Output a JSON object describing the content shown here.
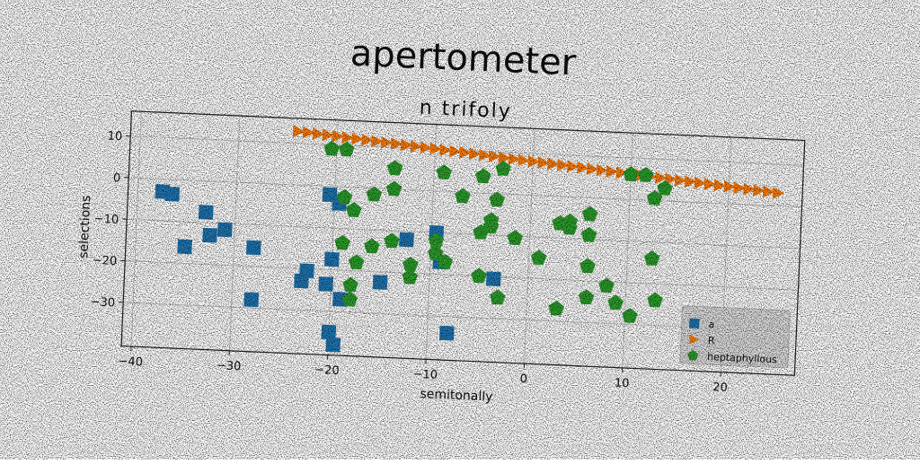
{
  "chart_data": {
    "type": "scatter",
    "title": "apertometer",
    "subtitle": "n trifoly",
    "xlabel": "semitonally",
    "ylabel": "selections",
    "xlim": [
      -41,
      27.5
    ],
    "ylim": [
      -40.5,
      16
    ],
    "xticks": [
      -40,
      -30,
      -20,
      -10,
      0,
      10,
      20
    ],
    "yticks": [
      10,
      0,
      -10,
      -20,
      -30
    ],
    "xtick_labels": [
      "−40",
      "−30",
      "−20",
      "−10",
      "0",
      "10",
      "20"
    ],
    "ytick_labels": [
      "10",
      "0",
      "−10",
      "−20",
      "−30"
    ],
    "grid": true,
    "legend_position": "lower-right",
    "series": [
      {
        "name": "a",
        "marker": "square",
        "color": "#1f77b4",
        "points": [
          [
            -37.5,
            -3
          ],
          [
            -36.5,
            -3.5
          ],
          [
            -35,
            -16
          ],
          [
            -33,
            -7.5
          ],
          [
            -32.5,
            -13
          ],
          [
            -31,
            -11.5
          ],
          [
            -28,
            -15.5
          ],
          [
            -28,
            -28
          ],
          [
            -23,
            -23
          ],
          [
            -22.5,
            -20.5
          ],
          [
            -20.5,
            -2
          ],
          [
            -20.5,
            -23.5
          ],
          [
            -20,
            -17.5
          ],
          [
            -20,
            -35
          ],
          [
            -19.5,
            -38
          ],
          [
            -19.5,
            -4
          ],
          [
            -19,
            -27
          ],
          [
            -15,
            -22.5
          ],
          [
            -12.5,
            -12
          ],
          [
            -9.5,
            -10
          ],
          [
            -9,
            -17
          ],
          [
            -8,
            -34
          ],
          [
            -3.5,
            -20.5
          ]
        ]
      },
      {
        "name": "R",
        "marker": "triangle-right",
        "color": "#ff7f0e",
        "points": [
          [
            -24,
            12.9
          ],
          [
            -23,
            12.7
          ],
          [
            -22,
            12.5
          ],
          [
            -21,
            12.3
          ],
          [
            -20,
            12.1
          ],
          [
            -19,
            11.9
          ],
          [
            -18,
            11.7
          ],
          [
            -17,
            11.5
          ],
          [
            -16,
            11.3
          ],
          [
            -15,
            11.1
          ],
          [
            -14,
            10.9
          ],
          [
            -13,
            10.7
          ],
          [
            -12,
            10.5
          ],
          [
            -11,
            10.3
          ],
          [
            -10,
            10.1
          ],
          [
            -9,
            9.9
          ],
          [
            -8,
            9.7
          ],
          [
            -7,
            9.5
          ],
          [
            -6,
            9.3
          ],
          [
            -5,
            9.1
          ],
          [
            -4,
            8.9
          ],
          [
            -3,
            8.7
          ],
          [
            -2,
            8.5
          ],
          [
            -1,
            8.3
          ],
          [
            0,
            8.1
          ],
          [
            1,
            7.9
          ],
          [
            2,
            7.7
          ],
          [
            3,
            7.5
          ],
          [
            4,
            7.3
          ],
          [
            5,
            7.1
          ],
          [
            6,
            6.9
          ],
          [
            7,
            6.7
          ],
          [
            8,
            6.5
          ],
          [
            9,
            6.3
          ],
          [
            10,
            6.1
          ],
          [
            11,
            5.9
          ],
          [
            12,
            5.7
          ],
          [
            13,
            5.5
          ],
          [
            14,
            5.3
          ],
          [
            15,
            5.1
          ],
          [
            16,
            4.9
          ],
          [
            17,
            4.7
          ],
          [
            18,
            4.5
          ],
          [
            19,
            4.3
          ],
          [
            20,
            4.1
          ],
          [
            21,
            3.9
          ],
          [
            22,
            3.7
          ],
          [
            23,
            3.5
          ],
          [
            24,
            3.3
          ],
          [
            25,
            3.1
          ]
        ]
      },
      {
        "name": "heptaphyllous",
        "marker": "pentagon",
        "color": "#2ca02c",
        "points": [
          [
            -20.5,
            9
          ],
          [
            -19,
            9
          ],
          [
            -14,
            5
          ],
          [
            -14,
            0
          ],
          [
            -16,
            -1.5
          ],
          [
            -19,
            -2.5
          ],
          [
            -18,
            -5.5
          ],
          [
            -19,
            -13.5
          ],
          [
            -16,
            -14
          ],
          [
            -14,
            -12.5
          ],
          [
            -17.5,
            -18
          ],
          [
            -12,
            -18
          ],
          [
            -12,
            -21
          ],
          [
            -18,
            -23.5
          ],
          [
            -18,
            -27
          ],
          [
            -9,
            4.5
          ],
          [
            -7,
            -1
          ],
          [
            -5,
            4
          ],
          [
            -3,
            6
          ],
          [
            -3.5,
            -1.5
          ],
          [
            -5,
            -9.5
          ],
          [
            -4,
            -6.5
          ],
          [
            -4,
            -8
          ],
          [
            -9.5,
            -12
          ],
          [
            -9.5,
            -15
          ],
          [
            -8.5,
            -17
          ],
          [
            -5,
            -20
          ],
          [
            -3,
            -25
          ],
          [
            -1.5,
            -10.5
          ],
          [
            1,
            -15
          ],
          [
            3,
            -6.5
          ],
          [
            4,
            -6
          ],
          [
            4,
            -7.5
          ],
          [
            3,
            -27
          ],
          [
            6,
            -4
          ],
          [
            6,
            -9
          ],
          [
            6,
            -16.5
          ],
          [
            6,
            -24
          ],
          [
            8,
            -21
          ],
          [
            9,
            -25
          ],
          [
            10.5,
            -28
          ],
          [
            10,
            6
          ],
          [
            11.5,
            6
          ],
          [
            12.5,
            0.5
          ],
          [
            13.5,
            3
          ],
          [
            12.5,
            -14
          ],
          [
            13,
            -24
          ]
        ]
      }
    ]
  }
}
